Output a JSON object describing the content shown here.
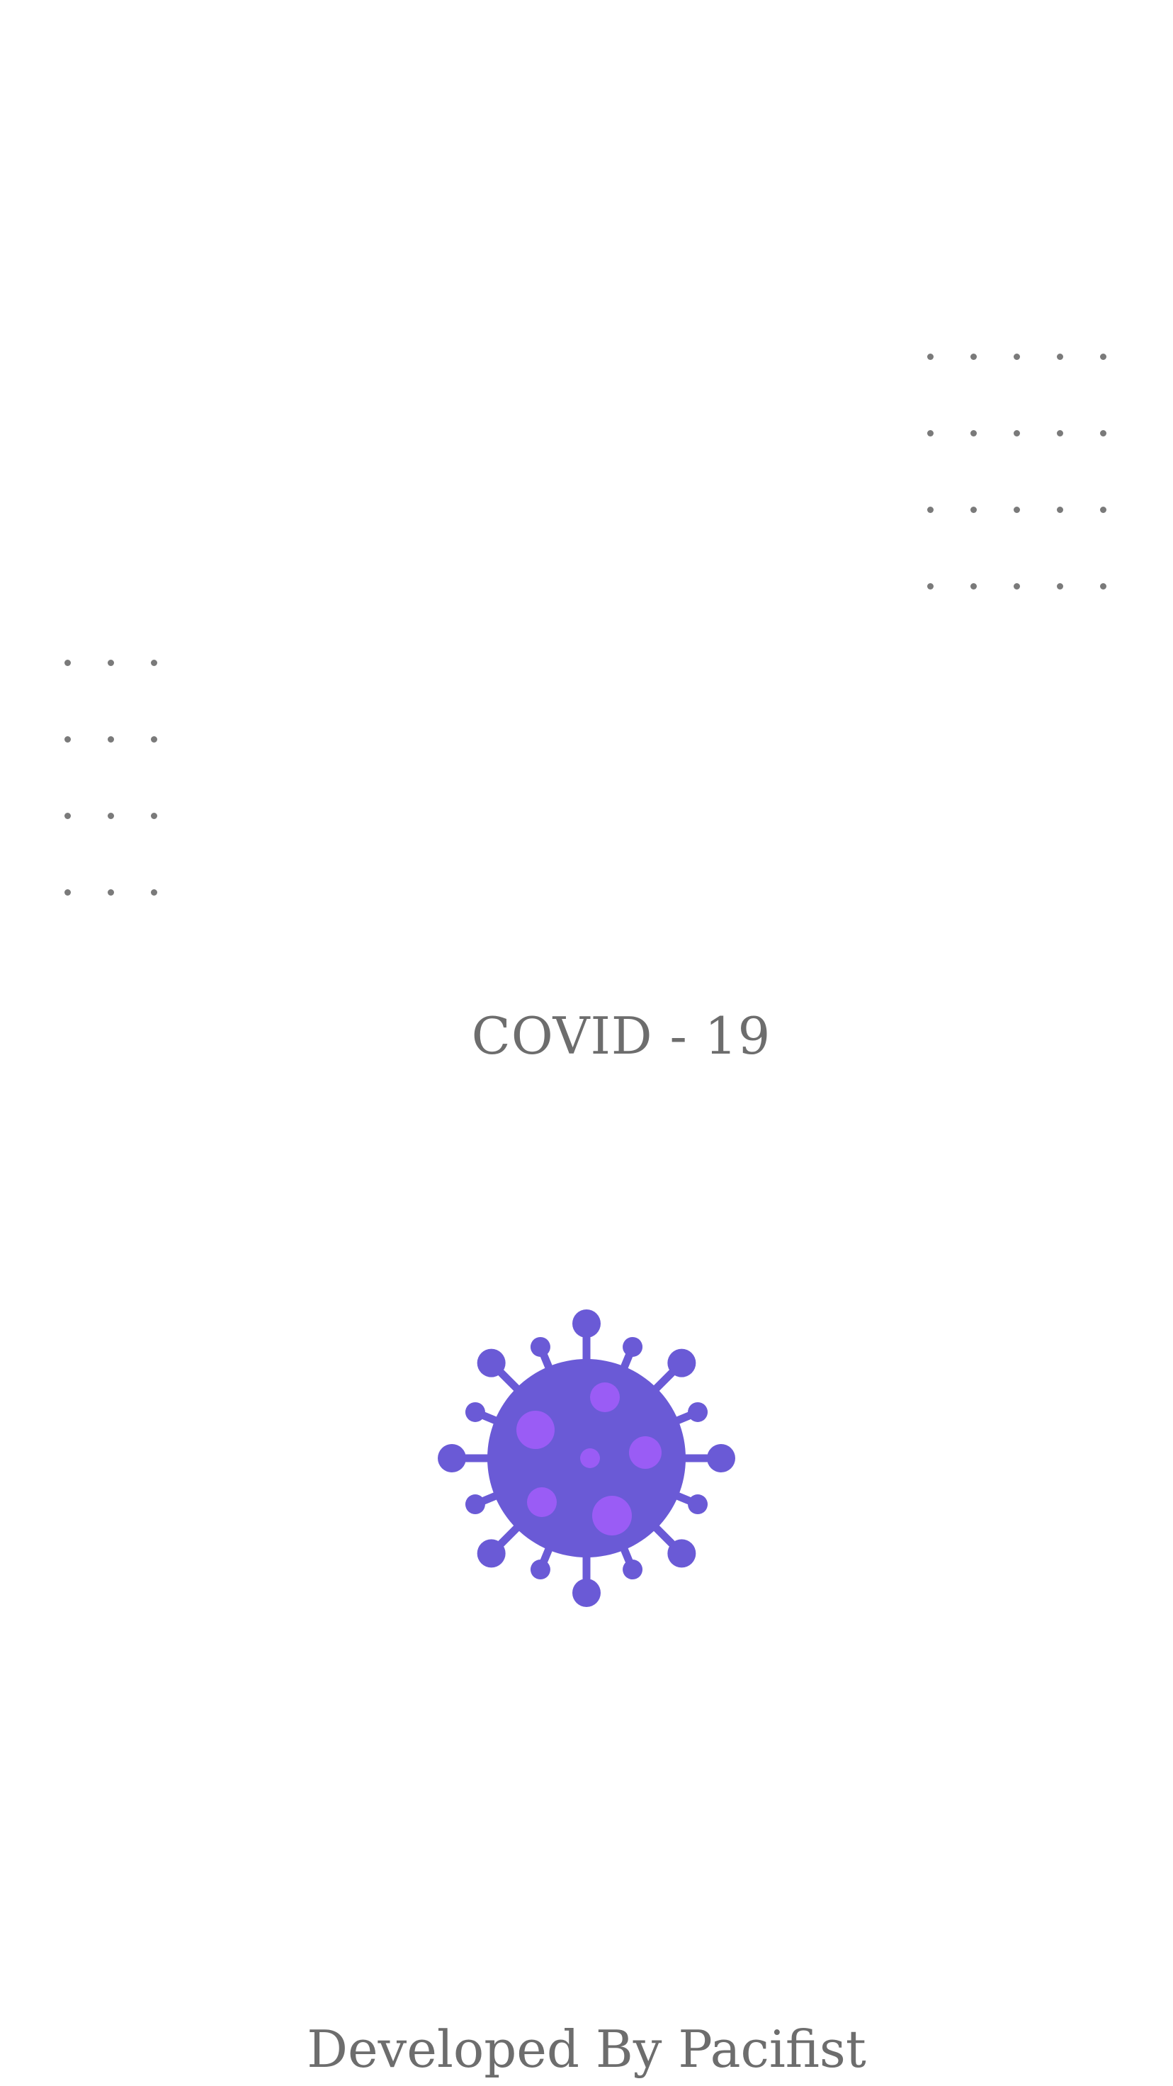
{
  "splash": {
    "title": "COVID - 19",
    "footer": "Developed By Pacifist",
    "logo_icon": "virus-icon"
  },
  "colors": {
    "background": "#ffffff",
    "text": "#6d6d6d",
    "dots": "#7a7a7a",
    "virus_body": "#6a5ad6",
    "virus_spots": "#9a5cf5"
  }
}
